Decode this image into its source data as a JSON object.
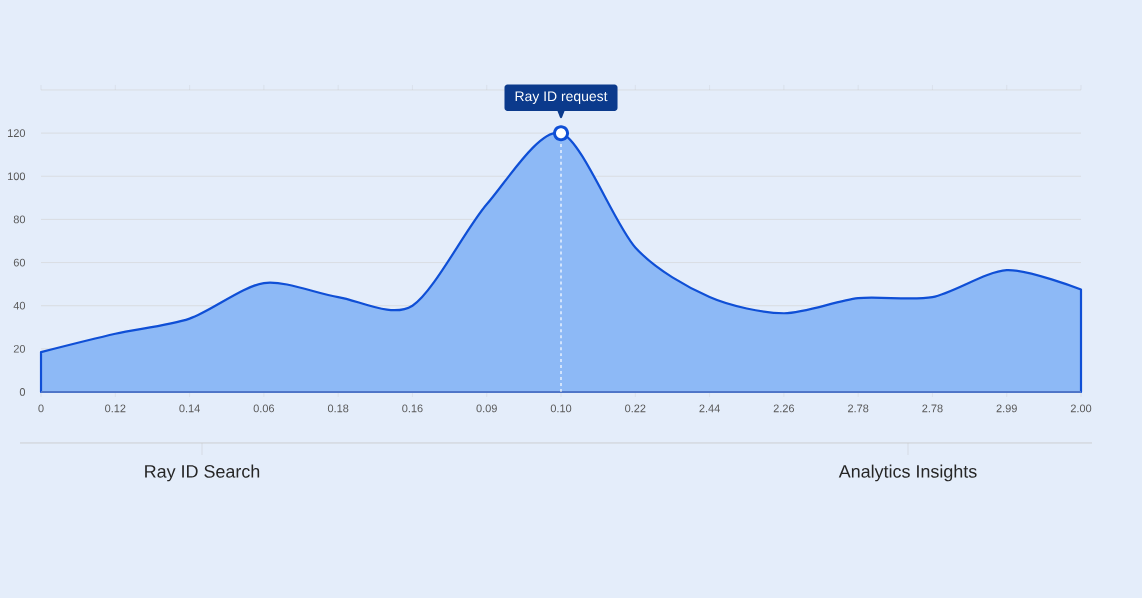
{
  "chart_data": {
    "type": "area",
    "categories": [
      "0",
      "0.12",
      "0.14",
      "0.06",
      "0.18",
      "0.16",
      "0.09",
      "0.10",
      "0.22",
      "2.44",
      "2.26",
      "2.78",
      "2.78",
      "2.99",
      "2.00"
    ],
    "values": [
      18.5,
      27,
      34,
      50.5,
      44,
      40,
      87,
      120,
      67,
      44,
      36.5,
      43.5,
      44,
      56.5,
      47.5
    ],
    "color": "#0f4fd6",
    "ylim": [
      0,
      140
    ],
    "yticks": [
      0,
      20,
      40,
      60,
      80,
      100,
      120,
      {
        "value": 140,
        "label": null
      }
    ],
    "grid": "y",
    "ref_lines": [
      {
        "axis": "x",
        "value": "0.10",
        "color": "#ffffff",
        "line_style": "dashed"
      }
    ],
    "annotations": [
      {
        "text": "Ray ID request",
        "x": "0.10",
        "y": 120
      },
      "Ray ID Search",
      "Analytics Insights"
    ]
  }
}
